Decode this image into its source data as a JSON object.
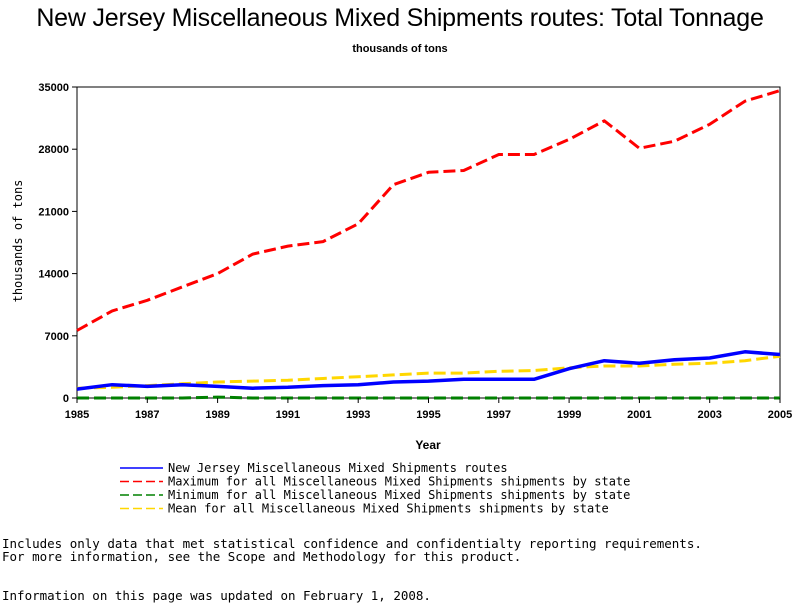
{
  "chart_data": {
    "type": "line",
    "title": "New Jersey Miscellaneous Mixed Shipments routes: Total Tonnage",
    "subtitle": "thousands of tons",
    "xlabel": "Year",
    "ylabel": "thousands of tons",
    "xlim": [
      1985,
      2005
    ],
    "ylim": [
      0,
      35000
    ],
    "xticks": [
      "1985",
      "1987",
      "1989",
      "1991",
      "1993",
      "1995",
      "1997",
      "1999",
      "2001",
      "2003",
      "2005"
    ],
    "yticks": [
      "0",
      "7000",
      "14000",
      "21000",
      "28000",
      "35000"
    ],
    "x": [
      1985,
      1986,
      1987,
      1988,
      1989,
      1990,
      1991,
      1992,
      1993,
      1994,
      1995,
      1996,
      1997,
      1998,
      1999,
      2000,
      2001,
      2002,
      2003,
      2004,
      2005
    ],
    "legend_position": "bottom",
    "grid": false,
    "series": [
      {
        "name": "New Jersey Miscellaneous Mixed Shipments routes",
        "color": "#0000ff",
        "style": "solid",
        "values": [
          1000,
          1500,
          1300,
          1500,
          1300,
          1100,
          1200,
          1400,
          1500,
          1800,
          1900,
          2100,
          2100,
          2100,
          3300,
          4200,
          3900,
          4300,
          4500,
          5200,
          4900
        ]
      },
      {
        "name": "Maximum for all Miscellaneous Mixed Shipments shipments by state",
        "color": "#ff0000",
        "style": "dashed",
        "values": [
          7600,
          9800,
          11000,
          12500,
          14000,
          16200,
          17100,
          17600,
          19600,
          24000,
          25400,
          25600,
          27400,
          27400,
          29100,
          31200,
          28100,
          28900,
          30800,
          33400,
          34600
        ]
      },
      {
        "name": "Minimum for all Miscellaneous Mixed Shipments shipments by state",
        "color": "#008000",
        "style": "dashed",
        "values": [
          0,
          0,
          0,
          0,
          100,
          0,
          0,
          0,
          0,
          0,
          0,
          0,
          0,
          0,
          0,
          0,
          0,
          0,
          0,
          0,
          0
        ]
      },
      {
        "name": "Mean for all Miscellaneous Mixed Shipments shipments by state",
        "color": "#ffd700",
        "style": "dashed",
        "values": [
          1100,
          1200,
          1400,
          1600,
          1800,
          1900,
          2000,
          2200,
          2400,
          2600,
          2800,
          2800,
          3000,
          3100,
          3400,
          3600,
          3600,
          3800,
          3900,
          4200,
          4700
        ]
      }
    ]
  },
  "notes": {
    "line1": "Includes only data that met statistical confidence and confidentialty reporting requirements.",
    "line2": "For more information, see the Scope and Methodology for this product.",
    "line3": "Information on this page was updated on February 1, 2008."
  }
}
